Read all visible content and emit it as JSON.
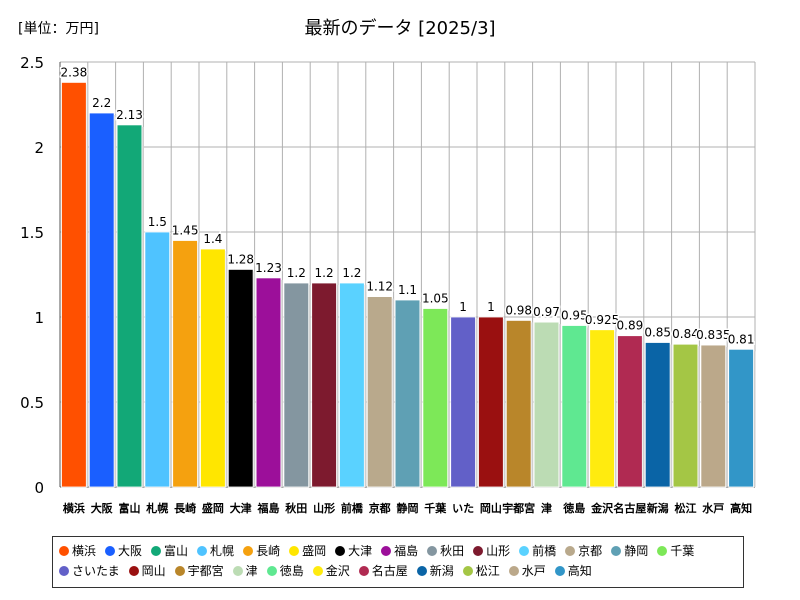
{
  "header": {
    "unit_label": "[単位：万円]",
    "title": "最新のデータ [2025/3]"
  },
  "chart_data": {
    "type": "bar",
    "title": "最新のデータ [2025/3]",
    "ylabel": "[単位：万円]",
    "xlabel": "",
    "ylim": [
      0,
      2.5
    ],
    "yticks": [
      "0",
      "0.5",
      "1",
      "1.5",
      "2",
      "2.5"
    ],
    "grid": true,
    "legend_position": "bottom",
    "categories": [
      "横浜",
      "大阪",
      "富山",
      "札幌",
      "長崎",
      "盛岡",
      "大津",
      "福島",
      "秋田",
      "山形",
      "前橋",
      "京都",
      "静岡",
      "千葉",
      "さいたま",
      "岡山",
      "宇都宮",
      "津",
      "徳島",
      "金沢",
      "名古屋",
      "新潟",
      "松江",
      "水戸",
      "高知"
    ],
    "tick_labels": [
      "横浜",
      "大阪",
      "富山",
      "札幌",
      "長崎",
      "盛岡",
      "大津",
      "福島",
      "秋田",
      "山形",
      "前橋",
      "京都",
      "静岡",
      "千葉",
      "いた",
      "岡山",
      "宇都宮",
      "津",
      "徳島",
      "金沢",
      "名古屋",
      "新潟",
      "松江",
      "水戸",
      "高知"
    ],
    "values": [
      2.38,
      2.2,
      2.13,
      1.5,
      1.45,
      1.4,
      1.28,
      1.23,
      1.2,
      1.2,
      1.2,
      1.12,
      1.1,
      1.05,
      1,
      1,
      0.98,
      0.97,
      0.95,
      0.925,
      0.89,
      0.85,
      0.84,
      0.835,
      0.81
    ],
    "data_labels": [
      "2.38",
      "2.2",
      "2.13",
      "1.5",
      "1.45",
      "1.4",
      "1.28",
      "1.23",
      "1.2",
      "1.2",
      "1.2",
      "1.12",
      "1.1",
      "1.05",
      "1",
      "1",
      "0.98",
      "0.97",
      "0.95",
      "0.925",
      "0.89",
      "0.85",
      "0.84",
      "0.835",
      "0.81"
    ],
    "colors": [
      "#ff5000",
      "#1a5fff",
      "#12a877",
      "#4fc3ff",
      "#f5a10f",
      "#ffe600",
      "#000000",
      "#9c0f9a",
      "#8496a0",
      "#7d1a2e",
      "#5ad2ff",
      "#b9a98c",
      "#5fa0b4",
      "#7de858",
      "#6260c8",
      "#9a1010",
      "#b9862a",
      "#bcdcb4",
      "#5fe891",
      "#ffeb0f",
      "#b02a52",
      "#0a64a6",
      "#a4c645",
      "#bba88a",
      "#3296c8"
    ]
  }
}
